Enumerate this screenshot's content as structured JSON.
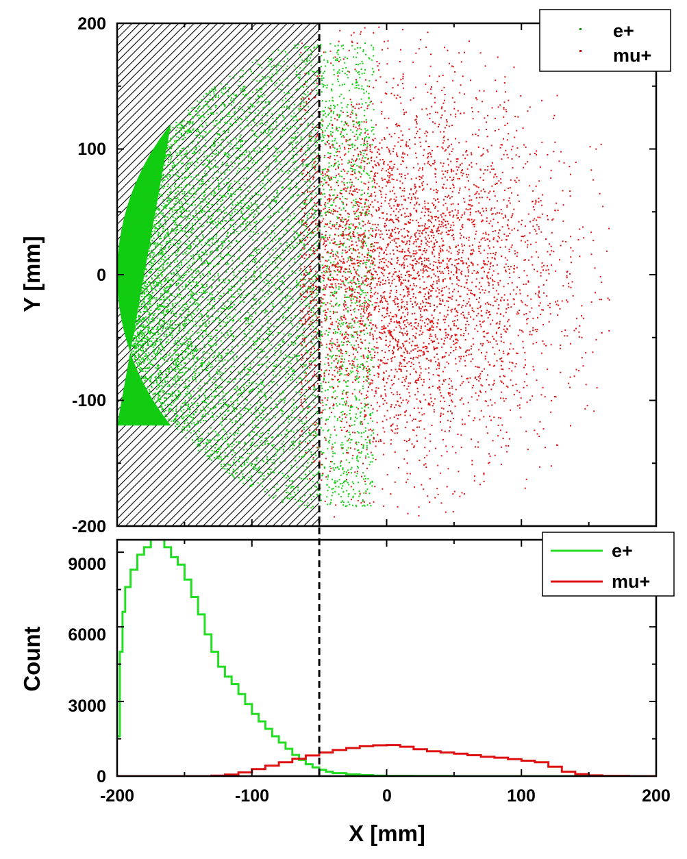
{
  "chart_data": [
    {
      "type": "scatter",
      "xlim": [
        -200,
        200
      ],
      "ylim": [
        -200,
        200
      ],
      "ylabel": "Y [mm]",
      "yticks": [
        200,
        100,
        0,
        -100,
        -200
      ],
      "yticklabels": [
        "200",
        "100",
        "0",
        "-100",
        "-200"
      ],
      "grid": false,
      "legend_position": "top-right",
      "shaded_region": {
        "x_from": -200,
        "x_to": -50,
        "pattern": "diagonal hatch"
      },
      "cut_line_x": -50,
      "series": [
        {
          "name": "e+",
          "color": "#00cc00",
          "x_center": -120,
          "y_center": 0,
          "radius": 150,
          "extent_x": [
            -200,
            -30
          ]
        },
        {
          "name": "mu+",
          "color": "#e00000",
          "x_center": 0,
          "y_center": 0,
          "radius": 195,
          "extent_x": [
            -60,
            160
          ]
        }
      ]
    },
    {
      "type": "line",
      "xlabel": "X [mm]",
      "ylabel": "Count",
      "xlim": [
        -200,
        200
      ],
      "ylim": [
        0,
        9500
      ],
      "xticks": [
        -200,
        -100,
        0,
        100,
        200
      ],
      "xticklabels": [
        "-200",
        "-100",
        "0",
        "100",
        "200"
      ],
      "yticks": [
        0,
        3000,
        6000,
        9000
      ],
      "yticklabels": [
        "0",
        "3000",
        "6000",
        "9000"
      ],
      "grid": false,
      "legend_position": "top-right",
      "cut_line_x": -50,
      "series": [
        {
          "name": "e+",
          "color": "#22dd22",
          "x": [
            -200,
            -198,
            -196,
            -194,
            -190,
            -185,
            -180,
            -175,
            -170,
            -165,
            -160,
            -155,
            -150,
            -145,
            -140,
            -135,
            -130,
            -125,
            -120,
            -115,
            -110,
            -105,
            -100,
            -95,
            -90,
            -85,
            -80,
            -75,
            -70,
            -65,
            -60,
            -55,
            -50,
            -45,
            -40,
            -30,
            -20,
            -10,
            0,
            20,
            50,
            100,
            200
          ],
          "values": [
            1600,
            5000,
            6600,
            7600,
            8300,
            8900,
            9200,
            9600,
            9700,
            9200,
            8800,
            8500,
            7900,
            7200,
            6500,
            5700,
            5000,
            4400,
            4000,
            3700,
            3300,
            2900,
            2500,
            2200,
            1900,
            1600,
            1350,
            1100,
            850,
            650,
            480,
            350,
            250,
            180,
            120,
            70,
            40,
            20,
            10,
            5,
            0,
            0,
            0
          ]
        },
        {
          "name": "mu+",
          "color": "#dd1111",
          "x": [
            -200,
            -150,
            -130,
            -120,
            -110,
            -100,
            -90,
            -80,
            -70,
            -60,
            -50,
            -40,
            -30,
            -20,
            -10,
            0,
            10,
            20,
            30,
            40,
            50,
            60,
            70,
            80,
            90,
            100,
            110,
            120,
            130,
            140,
            150,
            160,
            180,
            200
          ],
          "values": [
            0,
            0,
            20,
            60,
            150,
            280,
            420,
            560,
            700,
            830,
            950,
            1050,
            1130,
            1200,
            1240,
            1250,
            1180,
            1080,
            1000,
            950,
            900,
            840,
            780,
            740,
            680,
            620,
            560,
            380,
            180,
            80,
            30,
            10,
            0,
            0
          ]
        }
      ]
    }
  ]
}
